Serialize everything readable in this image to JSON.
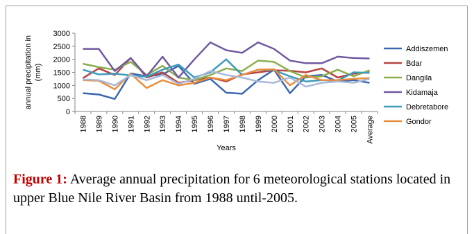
{
  "chart_data": {
    "type": "line",
    "title": "",
    "xlabel": "Years",
    "ylabel": "annual precipitation in (mm)",
    "ylim": [
      0,
      3000
    ],
    "yticks": [
      "0",
      "500",
      "1000",
      "1500",
      "2000",
      "2500",
      "3000"
    ],
    "categories": [
      "1988",
      "1989",
      "1990",
      "1991",
      "1992",
      "1993",
      "1994",
      "1995",
      "1996",
      "1997",
      "1998",
      "1999",
      "2000",
      "2001",
      "2002",
      "2003",
      "2004",
      "2005",
      "Average"
    ],
    "tick_labels": [
      "1988",
      "1989",
      "1990",
      "1991",
      "1992",
      "1993",
      "1994",
      "1995",
      "1996",
      "1997",
      "1998",
      "1999",
      "2000",
      "2001",
      "2002",
      "2003",
      "2004",
      "2005",
      "Average"
    ],
    "grid": false,
    "legend_position": "right",
    "series": [
      {
        "name": "Addiszemen",
        "color": "#3a67b0",
        "values": [
          700,
          650,
          480,
          1460,
          1350,
          1420,
          1750,
          1060,
          1250,
          720,
          680,
          1200,
          1600,
          700,
          1350,
          1400,
          1150,
          1200,
          1100
        ]
      },
      {
        "name": "Bdar",
        "color": "#b84341",
        "values": [
          1280,
          1650,
          1400,
          2050,
          1300,
          1500,
          1100,
          1200,
          1300,
          1150,
          1420,
          1500,
          1580,
          1560,
          1500,
          1650,
          1300,
          1450,
          1500
        ]
      },
      {
        "name": "Dangila",
        "color": "#8bad4c",
        "values": [
          1830,
          1700,
          1600,
          1900,
          1400,
          1750,
          1300,
          1200,
          1400,
          1650,
          1550,
          1950,
          1900,
          1550,
          1300,
          1350,
          1600,
          1350,
          1580
        ]
      },
      {
        "name": "Kidamaja",
        "color": "#7059a0",
        "values": [
          2400,
          2400,
          1550,
          2050,
          1350,
          2100,
          1300,
          2000,
          2650,
          2350,
          2250,
          2650,
          2400,
          1950,
          1850,
          1850,
          2100,
          2050,
          2030
        ]
      },
      {
        "name": "Debretabore",
        "color": "#3d9bbb",
        "values": [
          1600,
          1420,
          1450,
          1380,
          1330,
          1600,
          1800,
          1300,
          1500,
          2000,
          1400,
          1600,
          1580,
          1350,
          1150,
          1200,
          1180,
          1500,
          1480
        ]
      },
      {
        "name": "Gondor",
        "color": "#e98d3b",
        "values": [
          1200,
          1180,
          850,
          1450,
          900,
          1200,
          1000,
          1100,
          1300,
          1200,
          1400,
          1600,
          1620,
          1000,
          1400,
          1200,
          1200,
          1250,
          1280
        ]
      },
      {
        "name": "",
        "color": "#a9b8d9",
        "values": [
          1230,
          1200,
          1000,
          1400,
          1200,
          1400,
          1060,
          1250,
          1550,
          1400,
          1300,
          1150,
          1100,
          1300,
          950,
          1100,
          1150,
          1100,
          1250
        ]
      }
    ]
  },
  "caption": {
    "label": "Figure 1:",
    "text": " Average annual precipitation for 6 meteorological stations located in upper Blue Nile River Basin from 1988 until-2005."
  }
}
